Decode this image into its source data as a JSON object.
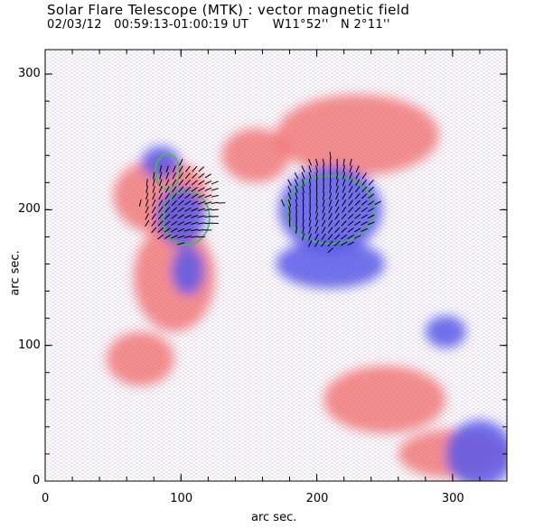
{
  "title": "Solar Flare Telescope (MTK) : vector magnetic field",
  "subtitle": "02/03/12   00:59:13-01:00:19 UT      W11°52''   N 2°11''",
  "xlabel": "arc sec.",
  "ylabel": "arc sec.",
  "colors": {
    "positive": "#f06a6a",
    "negative": "#5a5ae8",
    "contour": "#3cc04a",
    "vector": "#000000",
    "frame": "#000000"
  },
  "chart_data": {
    "type": "heatmap",
    "title": "Solar Flare Telescope (MTK) : vector magnetic field",
    "xlabel": "arc sec.",
    "ylabel": "arc sec.",
    "xlim": [
      0,
      340
    ],
    "ylim": [
      0,
      318
    ],
    "x_ticks": [
      "0",
      "100",
      "200",
      "300"
    ],
    "y_ticks": [
      "0",
      "100",
      "200",
      "300"
    ],
    "positive_regions": [
      {
        "x": 85,
        "y": 210,
        "rx": 35,
        "ry": 28
      },
      {
        "x": 95,
        "y": 150,
        "rx": 30,
        "ry": 40
      },
      {
        "x": 70,
        "y": 90,
        "rx": 25,
        "ry": 20
      },
      {
        "x": 230,
        "y": 255,
        "rx": 60,
        "ry": 30
      },
      {
        "x": 155,
        "y": 240,
        "rx": 25,
        "ry": 20
      },
      {
        "x": 250,
        "y": 60,
        "rx": 45,
        "ry": 25
      },
      {
        "x": 300,
        "y": 20,
        "rx": 40,
        "ry": 18
      }
    ],
    "negative_regions": [
      {
        "x": 100,
        "y": 195,
        "rx": 18,
        "ry": 22
      },
      {
        "x": 85,
        "y": 235,
        "rx": 14,
        "ry": 12
      },
      {
        "x": 105,
        "y": 155,
        "rx": 12,
        "ry": 18
      },
      {
        "x": 210,
        "y": 200,
        "rx": 38,
        "ry": 32
      },
      {
        "x": 210,
        "y": 160,
        "rx": 40,
        "ry": 18
      },
      {
        "x": 320,
        "y": 20,
        "rx": 25,
        "ry": 25
      },
      {
        "x": 295,
        "y": 110,
        "rx": 15,
        "ry": 12
      }
    ],
    "contours": [
      {
        "x": 104,
        "y": 194,
        "rx": 17,
        "ry": 20
      },
      {
        "x": 90,
        "y": 228,
        "rx": 9,
        "ry": 13
      },
      {
        "x": 210,
        "y": 200,
        "rx": 32,
        "ry": 25
      }
    ]
  }
}
